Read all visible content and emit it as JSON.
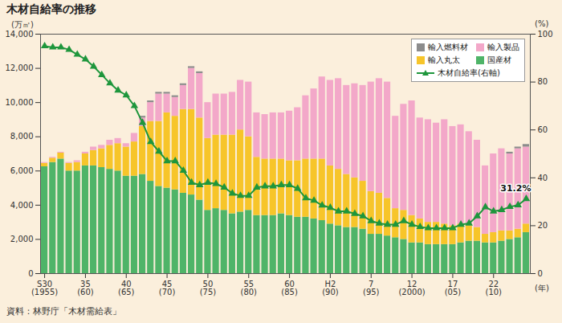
{
  "chart_data": {
    "type": "bar",
    "title": "木材自給率の推移",
    "source": "資料：林野庁「木材需給表」",
    "x_label": "(年)",
    "y_label": "(万㎥)",
    "y2_label": "(%)",
    "stacked": true,
    "grid": false,
    "legend": "upper right",
    "categories": [
      "S30\n(1955)",
      null,
      null,
      null,
      null,
      "35\n(60)",
      null,
      null,
      null,
      null,
      "40\n(65)",
      null,
      null,
      null,
      null,
      "45\n(70)",
      null,
      null,
      null,
      null,
      "50\n(75)",
      null,
      null,
      null,
      null,
      "55\n(80)",
      null,
      null,
      null,
      null,
      "60\n(85)",
      null,
      null,
      null,
      null,
      "H2\n(90)",
      null,
      null,
      null,
      null,
      "7\n(95)",
      null,
      null,
      null,
      null,
      "12\n(2000)",
      null,
      null,
      null,
      null,
      "17\n(05)",
      null,
      null,
      null,
      null,
      "22\n(10)",
      null,
      null,
      null,
      null
    ],
    "ylim": [
      0,
      14000
    ],
    "yticks": [
      0,
      {
        "value": 2000,
        "label": "2,000"
      },
      {
        "value": 4000,
        "label": "4,000"
      },
      {
        "value": 6000,
        "label": "6,000"
      },
      {
        "value": 8000,
        "label": "8,000"
      },
      {
        "value": 10000,
        "label": "10,000"
      },
      {
        "value": 12000,
        "label": "12,000"
      },
      {
        "value": 14000,
        "label": "14,000"
      }
    ],
    "y2lim": [
      0,
      100
    ],
    "y2ticks": [
      0,
      20,
      40,
      60,
      80,
      100
    ],
    "series": [
      {
        "name": "国産材",
        "color": "#4fb468",
        "values": [
          6250,
          6500,
          6700,
          6000,
          6000,
          6300,
          6300,
          6200,
          6100,
          6000,
          5700,
          5700,
          5800,
          5400,
          5100,
          5000,
          4900,
          4700,
          4600,
          4300,
          3700,
          3800,
          3700,
          3500,
          3600,
          3700,
          3400,
          3400,
          3400,
          3500,
          3400,
          3300,
          3300,
          3200,
          3100,
          2900,
          2800,
          2700,
          2700,
          2600,
          2300,
          2300,
          2200,
          2100,
          2000,
          1800,
          1800,
          1700,
          1700,
          1700,
          1700,
          1800,
          1900,
          1900,
          1800,
          1800,
          1900,
          2000,
          2100,
          2400
        ]
      },
      {
        "name": "輸入丸太",
        "color": "#f7c52a",
        "values": [
          200,
          250,
          350,
          450,
          500,
          700,
          900,
          1100,
          1400,
          1600,
          1700,
          2000,
          2800,
          3500,
          3800,
          4400,
          4300,
          4900,
          5000,
          4800,
          4200,
          4300,
          4400,
          4600,
          4800,
          4300,
          3400,
          3300,
          3300,
          3200,
          3200,
          3300,
          3400,
          3500,
          3600,
          3400,
          3300,
          3100,
          2900,
          2800,
          2500,
          2400,
          2200,
          1700,
          1700,
          1600,
          1400,
          1300,
          1300,
          1200,
          1100,
          1100,
          900,
          800,
          500,
          600,
          600,
          500,
          500,
          500
        ]
      },
      {
        "name": "輸入製品",
        "color": "#f3a8c9",
        "values": [
          50,
          50,
          50,
          50,
          100,
          100,
          200,
          200,
          300,
          300,
          200,
          500,
          500,
          1100,
          1600,
          1100,
          1100,
          1400,
          2400,
          2600,
          2100,
          2400,
          2400,
          2500,
          2900,
          3200,
          2600,
          2600,
          2700,
          2700,
          2900,
          3100,
          3700,
          4100,
          4800,
          5000,
          5300,
          5200,
          5500,
          5600,
          6400,
          6700,
          6800,
          5400,
          6200,
          6700,
          5900,
          6000,
          5800,
          6100,
          5800,
          5800,
          5500,
          5100,
          4000,
          4600,
          4800,
          4500,
          4700,
          4500
        ]
      },
      {
        "name": "輸入燃料材",
        "color": "#8c8c8c",
        "values": [
          0,
          0,
          0,
          0,
          0,
          0,
          0,
          0,
          0,
          0,
          0,
          0,
          100,
          100,
          100,
          100,
          100,
          100,
          100,
          100,
          0,
          0,
          0,
          0,
          0,
          0,
          0,
          0,
          0,
          0,
          0,
          0,
          0,
          0,
          0,
          0,
          0,
          0,
          0,
          0,
          0,
          0,
          0,
          0,
          0,
          0,
          0,
          0,
          0,
          0,
          0,
          0,
          0,
          0,
          0,
          0,
          0,
          100,
          100,
          150
        ]
      },
      {
        "name": "木材自給率(右軸)",
        "type": "line",
        "axis": "y2",
        "color": "#1e963c",
        "marker": "triangle",
        "values": [
          95,
          94.5,
          94.5,
          93.5,
          91.5,
          89.5,
          86.5,
          83,
          79.5,
          76.5,
          74.5,
          70,
          63,
          55,
          51,
          47,
          47,
          43,
          38,
          37,
          38,
          37.5,
          36,
          33.5,
          32.5,
          32.5,
          36,
          36.5,
          36.5,
          37,
          37,
          35.5,
          31.5,
          30.5,
          28.5,
          27.5,
          26,
          26,
          25,
          24,
          22,
          21,
          20.5,
          20.5,
          22,
          20.5,
          19.5,
          19,
          19,
          19,
          19,
          20.5,
          21,
          24,
          27.8,
          26,
          26.6,
          27.9,
          28.6,
          31.2
        ],
        "value_labels": [
          null,
          null,
          null,
          null,
          null,
          null,
          null,
          null,
          null,
          null,
          null,
          null,
          null,
          null,
          null,
          null,
          null,
          null,
          null,
          null,
          null,
          null,
          null,
          null,
          null,
          null,
          null,
          null,
          null,
          null,
          null,
          null,
          null,
          null,
          null,
          null,
          null,
          null,
          null,
          null,
          null,
          null,
          null,
          null,
          null,
          null,
          null,
          null,
          null,
          null,
          null,
          null,
          null,
          null,
          null,
          null,
          null,
          null,
          null,
          "31.2%"
        ]
      }
    ]
  }
}
